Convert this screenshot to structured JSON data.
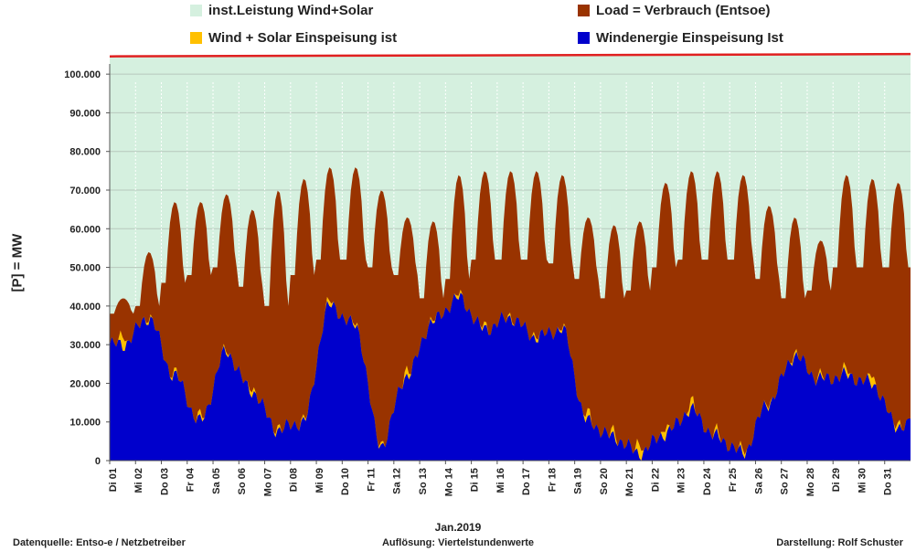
{
  "chart_data": {
    "type": "area",
    "xlabel": "Jan.2019",
    "ylabel": "[P] = MW",
    "ylim": [
      0,
      105000
    ],
    "yticks": [
      0,
      10000,
      20000,
      30000,
      40000,
      50000,
      60000,
      70000,
      80000,
      90000,
      100000
    ],
    "ytick_labels": [
      "0",
      "10.000",
      "20.000",
      "30.000",
      "40.000",
      "50.000",
      "60.000",
      "70.000",
      "80.000",
      "90.000",
      "100.000"
    ],
    "grid": true,
    "legend_position": "top",
    "categories": [
      "Di 01",
      "Mi 02",
      "Do 03",
      "Fr 04",
      "Sa 05",
      "So 06",
      "Mo 07",
      "Di 08",
      "Mi 09",
      "Do 10",
      "Fr 11",
      "Sa 12",
      "So 13",
      "Mo 14",
      "Di 15",
      "Mi 16",
      "Do 17",
      "Fr 18",
      "Sa 19",
      "So 20",
      "Mo 21",
      "Di 22",
      "Mi 23",
      "Do 24",
      "Fr 25",
      "Sa 26",
      "So 27",
      "Mo 28",
      "Di 29",
      "Mi 30",
      "Do 31"
    ],
    "series": [
      {
        "name": "inst.Leistung Wind+Solar",
        "color": "#d5f0df",
        "line_color": "#e02020",
        "value_start": 104600,
        "value_end": 105200
      },
      {
        "name": "Load =  Verbrauch (Entsoe)",
        "color": "#993300",
        "daily_peak": [
          42000,
          54000,
          67000,
          67000,
          69000,
          65000,
          70000,
          73000,
          76000,
          76000,
          70000,
          63000,
          62000,
          74000,
          75000,
          75000,
          75000,
          74000,
          63000,
          61000,
          62000,
          72000,
          75000,
          75000,
          74000,
          66000,
          63000,
          57000,
          74000,
          73000,
          72000
        ],
        "daily_low": [
          38000,
          40000,
          46000,
          48000,
          50000,
          45000,
          40000,
          48000,
          52000,
          52000,
          50000,
          48000,
          42000,
          47000,
          52000,
          52000,
          52000,
          51000,
          47000,
          42000,
          44000,
          50000,
          52000,
          52000,
          52000,
          47000,
          42000,
          44000,
          50000,
          50000,
          50000
        ]
      },
      {
        "name": "Wind + Solar Einspeisung ist",
        "color": "#ffc000",
        "daily_peak": [
          40000,
          39000,
          25000,
          14000,
          30000,
          22000,
          11000,
          12000,
          44000,
          37000,
          6000,
          28000,
          38000,
          45000,
          37000,
          39000,
          35000,
          36000,
          16000,
          11000,
          12000,
          14000,
          20000,
          10000,
          6000,
          17000,
          30000,
          24000,
          27000,
          28000,
          13000
        ]
      },
      {
        "name": "Windenergie Einspeisung Ist",
        "color": "#0000cc",
        "daily": [
          30000,
          37000,
          22000,
          10000,
          28000,
          18000,
          8000,
          10000,
          40000,
          35000,
          4000,
          22000,
          36000,
          42000,
          34000,
          37000,
          32000,
          34000,
          10000,
          6000,
          2000,
          7000,
          13000,
          6000,
          2000,
          15000,
          27000,
          21000,
          22000,
          20000,
          9000
        ]
      }
    ]
  },
  "footer": {
    "left": "Datenquelle:  Entso-e  / Netzbetreiber",
    "center": "Auflösung: Viertelstundenwerte",
    "right": "Darstellung: Rolf Schuster"
  }
}
